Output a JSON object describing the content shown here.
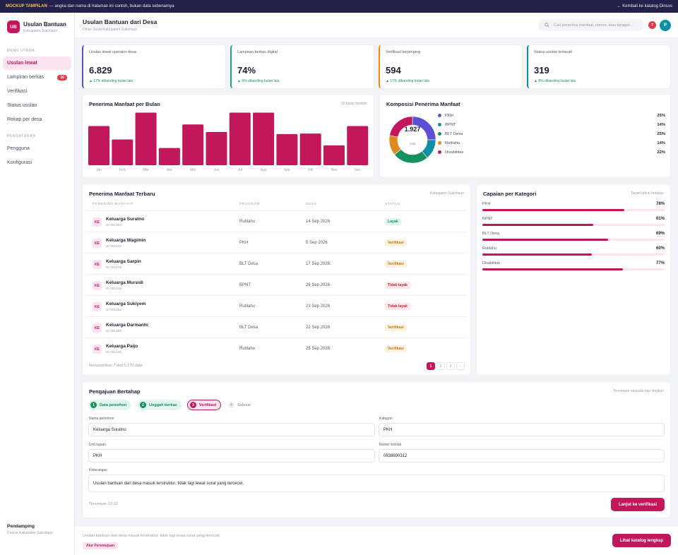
{
  "topbar": {
    "tag": "MOCKUP TAMPILAN",
    "note": "— angka dan nama di halaman ini contoh, bukan data sebenarnya",
    "back": "← Kembali ke katalog Dinsos"
  },
  "brand": {
    "initials": "UB",
    "title": "Usulan Bantuan",
    "subtitle": "Kabupaten Sukoharjo"
  },
  "sidebar": {
    "section_main": "MENU UTAMA",
    "items": [
      {
        "label": "Usulan lewat",
        "badge": ""
      },
      {
        "label": "Lampiran berkas",
        "badge": "16"
      },
      {
        "label": "Verifikasi",
        "badge": ""
      },
      {
        "label": "Status usulan",
        "badge": ""
      },
      {
        "label": "Rekap per desa",
        "badge": ""
      }
    ],
    "section_settings": "PENGATURAN",
    "settings": [
      {
        "label": "Pengguna"
      },
      {
        "label": "Konfigurasi"
      }
    ],
    "footer_name": "Pendamping",
    "footer_sub": "Dinsos Kabupaten Sukoharjo"
  },
  "header": {
    "title": "Usulan Bantuan dari Desa",
    "subtitle": "Dinas Sosial Kabupaten Sukoharjo",
    "search_placeholder": "Cari penerima manfaat, nomor, atau tanggal...",
    "notif_count": "7",
    "avatar": "P"
  },
  "kpis": [
    {
      "label": "Usulan lewat operator desa",
      "value": "6.829",
      "trend": "▲ 17% dibanding bulan lalu",
      "accent": "#5b4fd6"
    },
    {
      "label": "Lampiran berkas digital",
      "value": "74%",
      "trend": "▲ 9% dibanding bulan lalu",
      "accent": "#17a589"
    },
    {
      "label": "Verifikasi berjenjang",
      "value": "594",
      "trend": "▲ 17% dibanding bulan lalu",
      "accent": "#e08a1e"
    },
    {
      "label": "Status usulan terlacak",
      "value": "319",
      "trend": "▲ 8% dibanding bulan lalu",
      "accent": "#0e8fa3"
    }
  ],
  "bar_card": {
    "title": "Penerima Manfaat per Bulan",
    "aside": "12 bulan terakhir"
  },
  "donut_card": {
    "title": "Komposisi Penerima Manfaat",
    "total": "1.927",
    "total_label": "total"
  },
  "chart_data": [
    {
      "type": "bar",
      "title": "Penerima Manfaat per Bulan",
      "categories": [
        "Jan",
        "Feb",
        "Mar",
        "Apr",
        "Mei",
        "Jun",
        "Jul",
        "Agu",
        "Sep",
        "Okt",
        "Nov",
        "Des"
      ],
      "values": [
        73,
        48,
        98,
        32,
        76,
        62,
        98,
        98,
        58,
        59,
        37,
        73
      ],
      "ylim": [
        0,
        100
      ],
      "color": "#c2185b"
    },
    {
      "type": "pie",
      "title": "Komposisi Penerima Manfaat",
      "labels": [
        "PKH",
        "BPNT",
        "BLT Desa",
        "Rutilahu",
        "Disabilitas"
      ],
      "values": [
        25,
        14,
        25,
        14,
        22
      ],
      "percent_labels": [
        "25%",
        "14%",
        "25%",
        "14%",
        "22%"
      ],
      "colors": [
        "#5b4fd6",
        "#0e8fa3",
        "#17925f",
        "#e08a1e",
        "#c2185b"
      ]
    }
  ],
  "table": {
    "title": "Penerima Manfaat Terbaru",
    "aside": "Kabupaten Sukoharjo",
    "headers": [
      "PENERIMA MANFAAT",
      "PROGRAM",
      "DESA",
      "STATUS"
    ],
    "rows": [
      {
        "ini": "KE",
        "name": "Keluarga Suratno",
        "id": "ID 001204",
        "program": "Rutilahu",
        "date": "14 Sep 2026",
        "status": "Layak",
        "kind": "ok"
      },
      {
        "ini": "KE",
        "name": "Keluarga Wagimin",
        "id": "ID 001241",
        "program": "PKH",
        "date": "5 Sep 2026",
        "status": "Verifikasi",
        "kind": "ver"
      },
      {
        "ini": "KE",
        "name": "Keluarga Sarpin",
        "id": "ID 001278",
        "program": "BLT Desa",
        "date": "17 Sep 2026",
        "status": "Verifikasi",
        "kind": "ver"
      },
      {
        "ini": "KE",
        "name": "Keluarga Mursidi",
        "id": "ID 001315",
        "program": "BPNT",
        "date": "26 Sep 2026",
        "status": "Tidak layak",
        "kind": "no"
      },
      {
        "ini": "KE",
        "name": "Keluarga Sukiyem",
        "id": "ID 001352",
        "program": "Rutilahu",
        "date": "23 Sep 2026",
        "status": "Tidak layak",
        "kind": "no"
      },
      {
        "ini": "KE",
        "name": "Keluarga Darmanto",
        "id": "ID 001389",
        "program": "BLT Desa",
        "date": "22 Sep 2026",
        "status": "Verifikasi",
        "kind": "ver"
      },
      {
        "ini": "KE",
        "name": "Keluarga Paijo",
        "id": "ID 001426",
        "program": "Rutilahu",
        "date": "25 Sep 2026",
        "status": "Verifikasi",
        "kind": "ver"
      }
    ],
    "footer": "Menampilkan 7 dari 5.170 data",
    "pages": [
      "1",
      "2",
      "3",
      "›"
    ]
  },
  "achievement": {
    "title": "Capaian per Kategori",
    "aside": "Target tahun berjalan",
    "items": [
      {
        "label": "PKH",
        "pct": "78%",
        "value": 0.78
      },
      {
        "label": "BPNT",
        "pct": "61%",
        "value": 0.61
      },
      {
        "label": "BLT Desa",
        "pct": "69%",
        "value": 0.69
      },
      {
        "label": "Rutilahu",
        "pct": "60%",
        "value": 0.6
      },
      {
        "label": "Disabilitas",
        "pct": "77%",
        "value": 0.77
      }
    ]
  },
  "form": {
    "title": "Pengajuan Bertahap",
    "aside": "Tersimpan otomatis tiap langkah",
    "steps": [
      {
        "n": "1",
        "label": "Data pemohon"
      },
      {
        "n": "2",
        "label": "Unggah berkas"
      },
      {
        "n": "3",
        "label": "Verifikasi"
      },
      {
        "n": "4",
        "label": "Selesai"
      }
    ],
    "name_label": "Nama pemohon",
    "name_value": "Keluarga Suratno",
    "category_label": "Kategori",
    "category_value": "PKH",
    "unit_label": "Unit tujuan",
    "unit_value": "PKH",
    "contact_label": "Nomor kontak",
    "contact_value": "0838690312",
    "notes_label": "Keterangan",
    "notes_value": "Usulan bantuan dari desa masuk terstruktur, tidak lagi lewat surat yang tercecer.",
    "saved": "Tersimpan 13.32",
    "submit": "Lanjut ke verifikasi"
  },
  "footer": {
    "text": "Usulan bantuan dari desa masuk terstruktur, tidak lagi lewat surat yang tercecer.",
    "tag": "Alur Persetujuan",
    "button": "Lihat katalog lengkap"
  }
}
